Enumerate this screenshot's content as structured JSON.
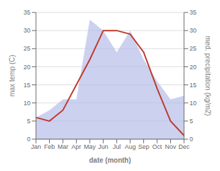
{
  "chart_data": {
    "type": "line",
    "categories": [
      "Jan",
      "Feb",
      "Mar",
      "Apr",
      "May",
      "Jun",
      "Jul",
      "Aug",
      "Sep",
      "Oct",
      "Nov",
      "Dec"
    ],
    "series": [
      {
        "type": "area",
        "color": "#b0b8e8",
        "axis": "y2",
        "values": [
          6,
          8,
          11,
          11,
          33,
          30,
          24,
          30,
          22,
          16,
          11,
          12
        ]
      },
      {
        "type": "line",
        "color": "#c0392b",
        "values": [
          6,
          5,
          8,
          15,
          22,
          30,
          30,
          29,
          24,
          14,
          5,
          1
        ]
      }
    ],
    "ylim": [
      0,
      35
    ],
    "yticks": [
      0,
      5,
      10,
      15,
      20,
      25,
      30,
      35
    ],
    "y2lim": [
      0,
      35
    ],
    "y2ticks": [
      0,
      5,
      10,
      15,
      20,
      25,
      30,
      35
    ],
    "xlabel": "date (month)",
    "ylabel": "max temp (C)",
    "y2label": "med. precipitation (kg/m2)",
    "grid": true
  }
}
